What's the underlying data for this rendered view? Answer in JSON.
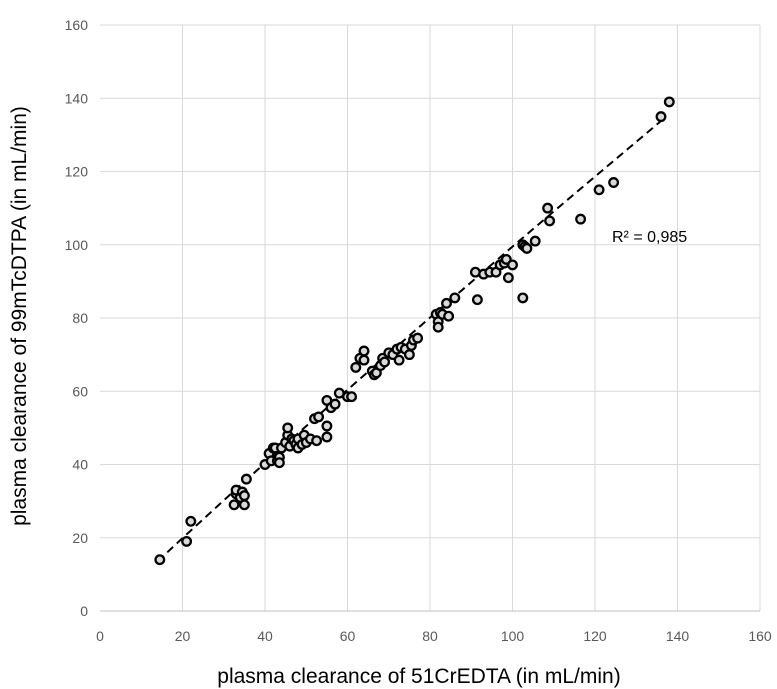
{
  "chart_data": {
    "type": "scatter",
    "title": "",
    "xlabel": "plasma clearance of  51CrEDTA (in mL/min)",
    "ylabel": "plasma clearance of 99mTcDTPA (in mL/min)",
    "xlim": [
      0,
      160
    ],
    "ylim": [
      0,
      160
    ],
    "xticks": [
      0,
      20,
      40,
      60,
      80,
      100,
      120,
      140,
      160
    ],
    "yticks": [
      0,
      20,
      40,
      60,
      80,
      100,
      120,
      140,
      160
    ],
    "xtick_labels": [
      "0",
      "20",
      "40",
      "60",
      "80",
      "100",
      "120",
      "140",
      "160"
    ],
    "ytick_labels": [
      "0",
      "20",
      "40",
      "60",
      "80",
      "100",
      "120",
      "140",
      "160"
    ],
    "grid": true,
    "legend": "none",
    "marker": "open-circle",
    "colors": {
      "marker_edge": "#000000",
      "marker_fill": "#d9d9d9",
      "trendline": "#000000",
      "grid": "#d9d9d9",
      "tick_text": "#595959"
    },
    "annotation": "R² = 0,985",
    "trendline": {
      "style": "dashed",
      "x": [
        14,
        16,
        20,
        30,
        40,
        50,
        60,
        70,
        80,
        90,
        100,
        110,
        120,
        130,
        136
      ],
      "y": [
        13.6,
        15.7,
        19.9,
        30.2,
        40.4,
        50.5,
        60.4,
        70.3,
        80.1,
        89.8,
        99.5,
        109.1,
        118.6,
        128.1,
        133.8
      ]
    },
    "series": [
      {
        "x": [
          14.5,
          21,
          22,
          32.5,
          33,
          33,
          34,
          34.5,
          35,
          35,
          35.5,
          40,
          41,
          41.5,
          42,
          42.5,
          43,
          43.5,
          43.5,
          44,
          45,
          45.5,
          45.5,
          46,
          46.5,
          47,
          47.5,
          48,
          48,
          49,
          49.5,
          50,
          51,
          52,
          52.5,
          53,
          55,
          55,
          55,
          56,
          57,
          58,
          60,
          61,
          62,
          63,
          64,
          64,
          66,
          66.5,
          67,
          68,
          68.5,
          69,
          70,
          71,
          72,
          72.5,
          73,
          74,
          75,
          75.5,
          76,
          77,
          81.5,
          82,
          82,
          82.5,
          83,
          84,
          84.5,
          86,
          91,
          91.5,
          93,
          94.5,
          96,
          97,
          98,
          98.5,
          99,
          100,
          102.5,
          102.5,
          103,
          103.5,
          105.5,
          108.5,
          109,
          116.5,
          121,
          124.5,
          136,
          138
        ],
        "y": [
          14,
          19,
          24.5,
          29,
          32,
          33,
          31,
          32.5,
          29,
          31.5,
          36,
          40,
          43,
          41,
          44.5,
          44.5,
          41,
          42,
          40.5,
          44.5,
          46,
          48,
          50,
          45,
          47,
          46.5,
          45.5,
          47,
          44.5,
          45.5,
          48,
          46,
          47,
          52.5,
          46.5,
          53,
          50.5,
          47.5,
          57.5,
          55.5,
          56.5,
          59.5,
          58.5,
          58.5,
          66.5,
          69,
          71,
          68.5,
          65.5,
          64.5,
          65,
          67,
          69,
          68,
          70.5,
          70,
          71.5,
          68.5,
          72,
          71.5,
          70,
          72.5,
          74,
          74.5,
          81,
          79,
          77.5,
          81.5,
          81,
          84,
          80.5,
          85.5,
          92.5,
          85,
          92,
          92.5,
          92.5,
          94.5,
          95,
          96,
          91,
          94.5,
          85.5,
          100,
          99.5,
          99,
          101,
          110,
          106.5,
          107,
          115,
          117,
          135,
          139
        ]
      }
    ]
  }
}
